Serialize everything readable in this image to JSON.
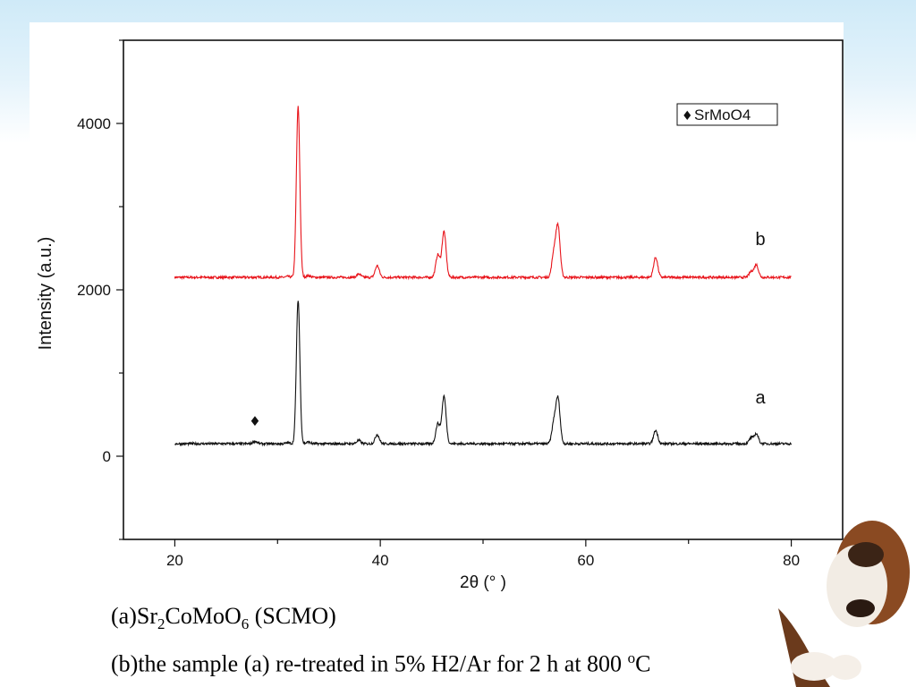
{
  "chart_data": {
    "type": "line",
    "title": "",
    "xlabel": "2θ (°  )",
    "ylabel": "Intensity (a.u.)",
    "xlim": [
      15,
      85
    ],
    "ylim": [
      -1000,
      5000
    ],
    "x_ticks": [
      20,
      40,
      60,
      80
    ],
    "y_ticks": [
      0,
      2000,
      4000
    ],
    "grid": false,
    "legend": {
      "label": "SrMoO4",
      "marker": "♦",
      "position": "top-right"
    },
    "series": [
      {
        "name": "b",
        "color": "#e8141b",
        "baseline": 2150,
        "x": [
          20,
          27.8,
          31.0,
          32.0,
          33.0,
          37.9,
          39.7,
          45.6,
          46.2,
          56.9,
          57.3,
          66.8,
          76.1,
          76.6,
          80
        ],
        "y": [
          2150,
          2150,
          2160,
          4200,
          2170,
          2190,
          2290,
          2420,
          2700,
          2440,
          2750,
          2390,
          2220,
          2300,
          2150
        ]
      },
      {
        "name": "a",
        "color": "#111111",
        "baseline": 150,
        "x": [
          20,
          27.8,
          31.0,
          32.0,
          33.0,
          37.9,
          39.7,
          45.6,
          46.2,
          56.9,
          57.3,
          66.8,
          76.1,
          76.6,
          80
        ],
        "y": [
          150,
          180,
          160,
          1880,
          170,
          190,
          260,
          390,
          720,
          400,
          680,
          310,
          220,
          270,
          150
        ]
      }
    ],
    "annotations": [
      {
        "text": "b",
        "x": 77,
        "y": 2600
      },
      {
        "text": "a",
        "x": 77,
        "y": 700
      },
      {
        "text": "♦",
        "x": 27.8,
        "y": 430
      }
    ]
  },
  "caption": {
    "line_a": {
      "p1": "(a)Sr",
      "s1": "2",
      "p2": "CoMoO",
      "s2": "6",
      "p3": " (SCMO)"
    },
    "line_b": {
      "p1": "(b)the sample (a) re-treated in 5% H2/Ar for 2 h at 800 ",
      "sup": "o",
      "p2": "C"
    }
  },
  "decor": {
    "image": "beagle-dog-illustration"
  }
}
